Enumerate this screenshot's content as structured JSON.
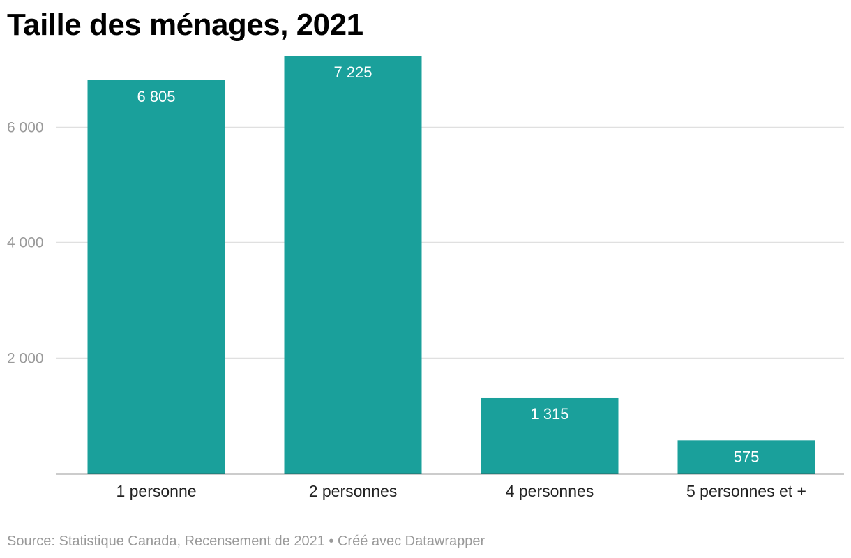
{
  "title": "Taille des ménages, 2021",
  "source": "Source: Statistique Canada, Recensement de 2021 • Créé avec Datawrapper",
  "colors": {
    "bar": "#1aa09b",
    "grid": "#e0e0e0",
    "baseline": "#333333",
    "label": "#ffffff"
  },
  "chart_data": {
    "type": "bar",
    "title": "Taille des ménages, 2021",
    "categories": [
      "1 personne",
      "2 personnes",
      "4 personnes",
      "5 personnes et +"
    ],
    "values": [
      6805,
      7225,
      1315,
      575
    ],
    "value_labels": [
      "6 805",
      "7 225",
      "1 315",
      "575"
    ],
    "y_ticks": [
      2000,
      4000,
      6000
    ],
    "y_tick_labels": [
      "2 000",
      "4 000",
      "6 000"
    ],
    "ylim": [
      0,
      7225
    ],
    "grid": true,
    "xlabel": "",
    "ylabel": ""
  }
}
